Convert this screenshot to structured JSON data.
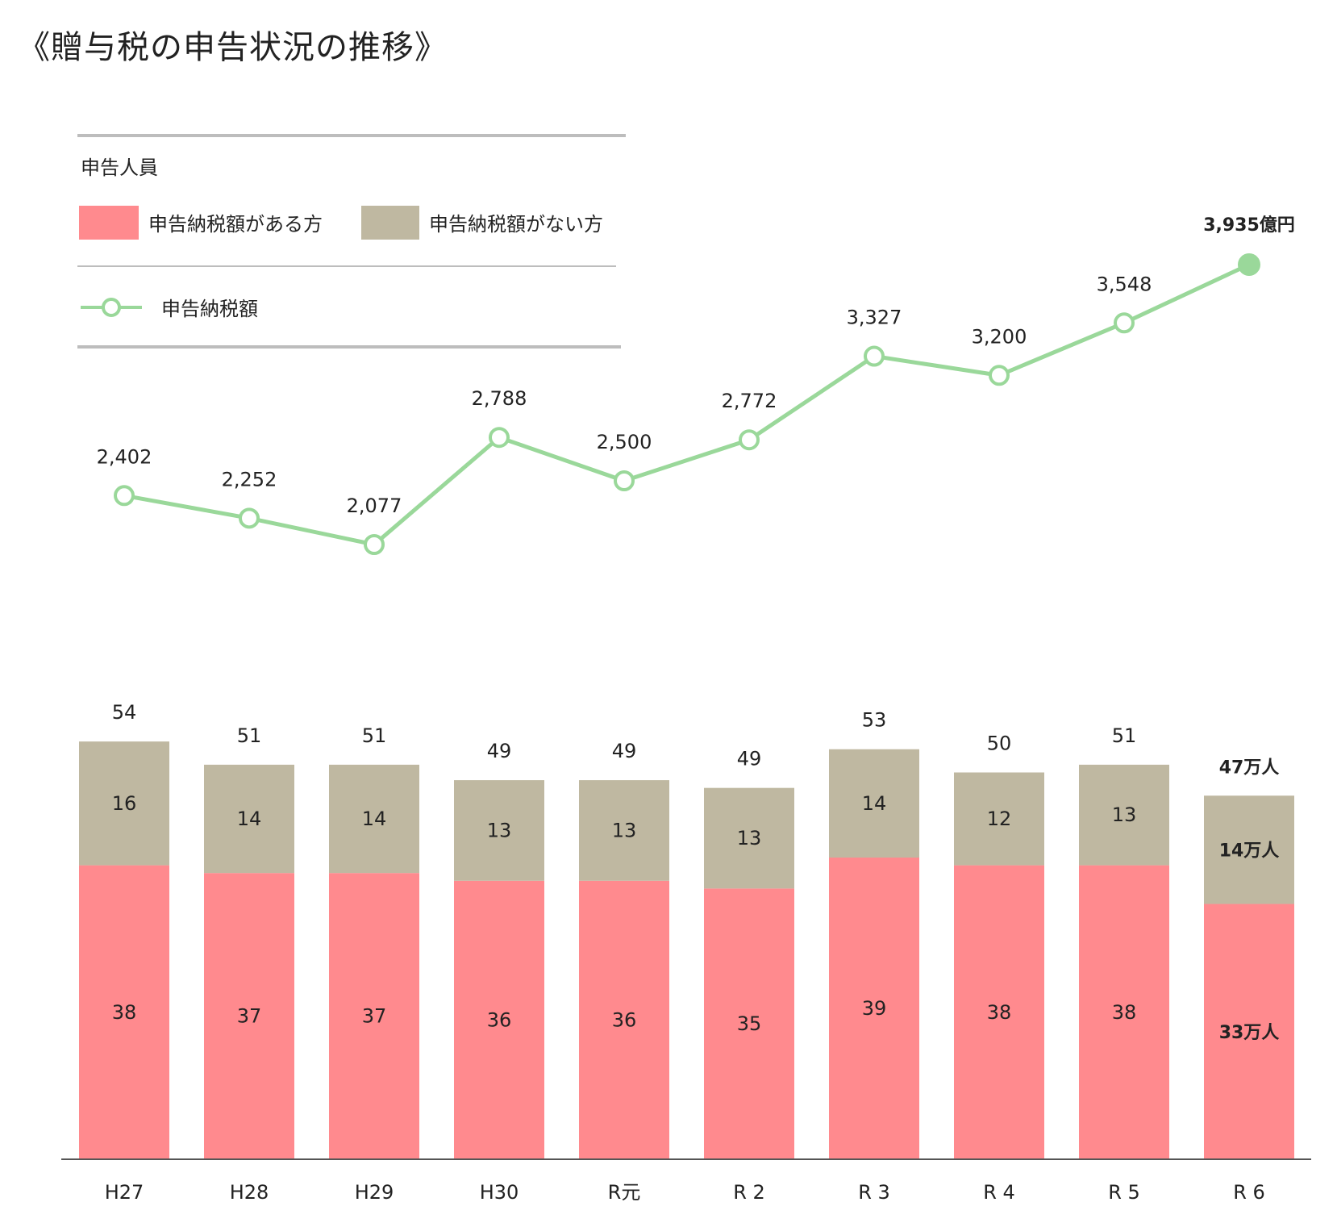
{
  "title": "《贈与税の申告状況の推移》",
  "legend": {
    "group_title": "申告人員",
    "with_tax": "申告納税額がある方",
    "without_tax": "申告納税額がない方",
    "tax_line": "申告納税額"
  },
  "colors": {
    "with_tax": "#FF8A8E",
    "without_tax": "#BFB8A1",
    "line": "#9AD89A",
    "axis": "#555555",
    "divider": "#BDBDBD"
  },
  "chart_data": [
    {
      "type": "bar",
      "stacked": true,
      "categories": [
        "H27",
        "H28",
        "H29",
        "H30",
        "R元",
        "R 2",
        "R 3",
        "R 4",
        "R 5",
        "R 6"
      ],
      "series": [
        {
          "name": "申告納税額がある方",
          "values": [
            38,
            37,
            37,
            36,
            36,
            35,
            39,
            38,
            38,
            33
          ]
        },
        {
          "name": "申告納税額がない方",
          "values": [
            16,
            14,
            14,
            13,
            13,
            13,
            14,
            12,
            13,
            14
          ]
        }
      ],
      "totals": [
        54,
        51,
        51,
        49,
        49,
        49,
        53,
        50,
        51,
        47
      ],
      "last_labels": {
        "total": "47万人",
        "with_tax": "33万人",
        "without_tax": "14万人"
      },
      "ylabel": "申告人員",
      "ylim": [
        0,
        60
      ]
    },
    {
      "type": "line",
      "categories": [
        "H27",
        "H28",
        "H29",
        "H30",
        "R元",
        "R 2",
        "R 3",
        "R 4",
        "R 5",
        "R 6"
      ],
      "series": [
        {
          "name": "申告納税額",
          "values": [
            2402,
            2252,
            2077,
            2788,
            2500,
            2772,
            3327,
            3200,
            3548,
            3935
          ]
        }
      ],
      "value_labels": [
        "2,402",
        "2,252",
        "2,077",
        "2,788",
        "2,500",
        "2,772",
        "3,327",
        "3,200",
        "3,548",
        "3,935億円"
      ]
    }
  ]
}
